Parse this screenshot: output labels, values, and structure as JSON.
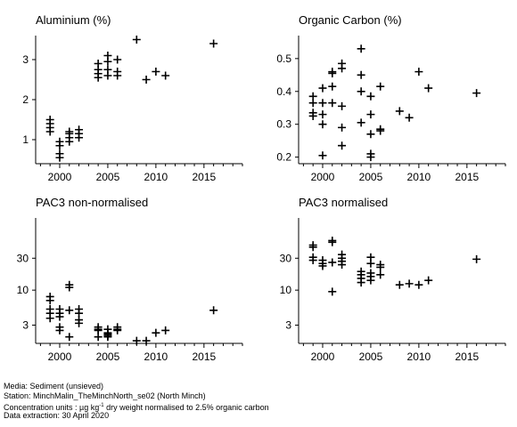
{
  "chart_data": [
    {
      "type": "scatter",
      "title": "Aluminium (%)",
      "marker": "plus",
      "xlim": [
        1997.5,
        2019
      ],
      "ylim": [
        0.4,
        3.6
      ],
      "yscale": "linear",
      "xticks": [
        "2000",
        "2005",
        "2010",
        "2015"
      ],
      "yticks": [
        "1",
        "2",
        "3"
      ],
      "points": [
        {
          "x": 1999,
          "y": 1.5
        },
        {
          "x": 1999,
          "y": 1.4
        },
        {
          "x": 1999,
          "y": 1.3
        },
        {
          "x": 1999,
          "y": 1.2
        },
        {
          "x": 2000,
          "y": 0.95
        },
        {
          "x": 2000,
          "y": 0.85
        },
        {
          "x": 2000,
          "y": 0.65
        },
        {
          "x": 2000,
          "y": 0.55
        },
        {
          "x": 2001,
          "y": 1.2
        },
        {
          "x": 2001,
          "y": 1.15
        },
        {
          "x": 2001,
          "y": 1.05
        },
        {
          "x": 2001,
          "y": 0.95
        },
        {
          "x": 2002,
          "y": 1.25
        },
        {
          "x": 2002,
          "y": 1.15
        },
        {
          "x": 2002,
          "y": 1.05
        },
        {
          "x": 2004,
          "y": 2.9
        },
        {
          "x": 2004,
          "y": 2.75
        },
        {
          "x": 2004,
          "y": 2.65
        },
        {
          "x": 2004,
          "y": 2.55
        },
        {
          "x": 2005,
          "y": 3.1
        },
        {
          "x": 2005,
          "y": 2.95
        },
        {
          "x": 2005,
          "y": 2.75
        },
        {
          "x": 2005,
          "y": 2.6
        },
        {
          "x": 2006,
          "y": 3.0
        },
        {
          "x": 2006,
          "y": 2.7
        },
        {
          "x": 2006,
          "y": 2.6
        },
        {
          "x": 2008,
          "y": 3.5
        },
        {
          "x": 2009,
          "y": 2.5
        },
        {
          "x": 2010,
          "y": 2.7
        },
        {
          "x": 2011,
          "y": 2.6
        },
        {
          "x": 2016,
          "y": 3.4
        }
      ]
    },
    {
      "type": "scatter",
      "title": "Organic Carbon (%)",
      "marker": "plus",
      "xlim": [
        1997.5,
        2019
      ],
      "ylim": [
        0.18,
        0.57
      ],
      "yscale": "linear",
      "xticks": [
        "2000",
        "2005",
        "2010",
        "2015"
      ],
      "yticks": [
        "0.2",
        "0.3",
        "0.4",
        "0.5"
      ],
      "points": [
        {
          "x": 1999,
          "y": 0.385
        },
        {
          "x": 1999,
          "y": 0.365
        },
        {
          "x": 1999,
          "y": 0.335
        },
        {
          "x": 1999,
          "y": 0.325
        },
        {
          "x": 2000,
          "y": 0.41
        },
        {
          "x": 2000,
          "y": 0.365
        },
        {
          "x": 2000,
          "y": 0.33
        },
        {
          "x": 2000,
          "y": 0.3
        },
        {
          "x": 2000,
          "y": 0.205
        },
        {
          "x": 2001,
          "y": 0.46
        },
        {
          "x": 2001,
          "y": 0.455
        },
        {
          "x": 2001,
          "y": 0.415
        },
        {
          "x": 2001,
          "y": 0.365
        },
        {
          "x": 2002,
          "y": 0.485
        },
        {
          "x": 2002,
          "y": 0.47
        },
        {
          "x": 2002,
          "y": 0.355
        },
        {
          "x": 2002,
          "y": 0.29
        },
        {
          "x": 2002,
          "y": 0.235
        },
        {
          "x": 2004,
          "y": 0.53
        },
        {
          "x": 2004,
          "y": 0.45
        },
        {
          "x": 2004,
          "y": 0.4
        },
        {
          "x": 2004,
          "y": 0.305
        },
        {
          "x": 2005,
          "y": 0.385
        },
        {
          "x": 2005,
          "y": 0.33
        },
        {
          "x": 2005,
          "y": 0.27
        },
        {
          "x": 2005,
          "y": 0.21
        },
        {
          "x": 2005,
          "y": 0.2
        },
        {
          "x": 2006,
          "y": 0.415
        },
        {
          "x": 2006,
          "y": 0.285
        },
        {
          "x": 2006,
          "y": 0.28
        },
        {
          "x": 2008,
          "y": 0.34
        },
        {
          "x": 2009,
          "y": 0.32
        },
        {
          "x": 2010,
          "y": 0.46
        },
        {
          "x": 2011,
          "y": 0.41
        },
        {
          "x": 2016,
          "y": 0.395
        }
      ]
    },
    {
      "type": "scatter",
      "title": "PAC3 non-normalised",
      "marker": "plus",
      "xlim": [
        1997.5,
        2019
      ],
      "ylim": [
        1.6,
        120
      ],
      "yscale": "log",
      "xticks": [
        "2000",
        "2005",
        "2010",
        "2015"
      ],
      "yticks": [
        "3",
        "10",
        "30"
      ],
      "points": [
        {
          "x": 1999,
          "y": 8
        },
        {
          "x": 1999,
          "y": 7
        },
        {
          "x": 1999,
          "y": 5.2
        },
        {
          "x": 1999,
          "y": 4.5
        },
        {
          "x": 1999,
          "y": 3.8
        },
        {
          "x": 2000,
          "y": 5.2
        },
        {
          "x": 2000,
          "y": 4.5
        },
        {
          "x": 2000,
          "y": 4
        },
        {
          "x": 2000,
          "y": 2.8
        },
        {
          "x": 2000,
          "y": 2.5
        },
        {
          "x": 2001,
          "y": 12
        },
        {
          "x": 2001,
          "y": 11
        },
        {
          "x": 2001,
          "y": 5
        },
        {
          "x": 2001,
          "y": 2
        },
        {
          "x": 2002,
          "y": 5.2
        },
        {
          "x": 2002,
          "y": 4.5
        },
        {
          "x": 2002,
          "y": 3.6
        },
        {
          "x": 2002,
          "y": 3.2
        },
        {
          "x": 2004,
          "y": 2.8
        },
        {
          "x": 2004,
          "y": 2.6
        },
        {
          "x": 2004,
          "y": 2.5
        },
        {
          "x": 2004,
          "y": 2
        },
        {
          "x": 2005,
          "y": 2.6
        },
        {
          "x": 2005,
          "y": 2.3
        },
        {
          "x": 2005,
          "y": 2.2
        },
        {
          "x": 2005,
          "y": 2.1
        },
        {
          "x": 2005,
          "y": 2
        },
        {
          "x": 2006,
          "y": 2.8
        },
        {
          "x": 2006,
          "y": 2.6
        },
        {
          "x": 2006,
          "y": 2.5
        },
        {
          "x": 2008,
          "y": 1.75
        },
        {
          "x": 2009,
          "y": 1.75
        },
        {
          "x": 2010,
          "y": 2.3
        },
        {
          "x": 2011,
          "y": 2.5
        },
        {
          "x": 2016,
          "y": 5
        }
      ]
    },
    {
      "type": "scatter",
      "title": "PAC3 normalised",
      "marker": "plus",
      "xlim": [
        1997.5,
        2019
      ],
      "ylim": [
        1.6,
        120
      ],
      "yscale": "log",
      "xticks": [
        "2000",
        "2005",
        "2010",
        "2015"
      ],
      "yticks": [
        "3",
        "10",
        "30"
      ],
      "points": [
        {
          "x": 1999,
          "y": 47
        },
        {
          "x": 1999,
          "y": 44
        },
        {
          "x": 1999,
          "y": 31
        },
        {
          "x": 1999,
          "y": 28
        },
        {
          "x": 2000,
          "y": 28
        },
        {
          "x": 2000,
          "y": 25
        },
        {
          "x": 2000,
          "y": 23
        },
        {
          "x": 2001,
          "y": 55
        },
        {
          "x": 2001,
          "y": 52
        },
        {
          "x": 2001,
          "y": 26
        },
        {
          "x": 2001,
          "y": 9.5
        },
        {
          "x": 2002,
          "y": 34
        },
        {
          "x": 2002,
          "y": 30
        },
        {
          "x": 2002,
          "y": 27
        },
        {
          "x": 2002,
          "y": 24
        },
        {
          "x": 2004,
          "y": 19
        },
        {
          "x": 2004,
          "y": 17
        },
        {
          "x": 2004,
          "y": 15
        },
        {
          "x": 2004,
          "y": 13
        },
        {
          "x": 2005,
          "y": 31
        },
        {
          "x": 2005,
          "y": 25
        },
        {
          "x": 2005,
          "y": 18
        },
        {
          "x": 2005,
          "y": 16
        },
        {
          "x": 2005,
          "y": 14
        },
        {
          "x": 2006,
          "y": 24
        },
        {
          "x": 2006,
          "y": 22
        },
        {
          "x": 2006,
          "y": 17
        },
        {
          "x": 2008,
          "y": 12
        },
        {
          "x": 2009,
          "y": 12.5
        },
        {
          "x": 2010,
          "y": 12
        },
        {
          "x": 2011,
          "y": 14
        },
        {
          "x": 2016,
          "y": 29
        }
      ]
    }
  ],
  "footer": {
    "media": "Media: Sediment (unsieved)",
    "station": "Station: MinchMalin_TheMinchNorth_se02 (North Minch)",
    "units_prefix": "Concentration units : µg kg",
    "units_exp": "-1",
    "units_suffix": " dry weight normalised to 2.5% organic carbon",
    "extraction": "Data extraction: 30 April 2020"
  }
}
